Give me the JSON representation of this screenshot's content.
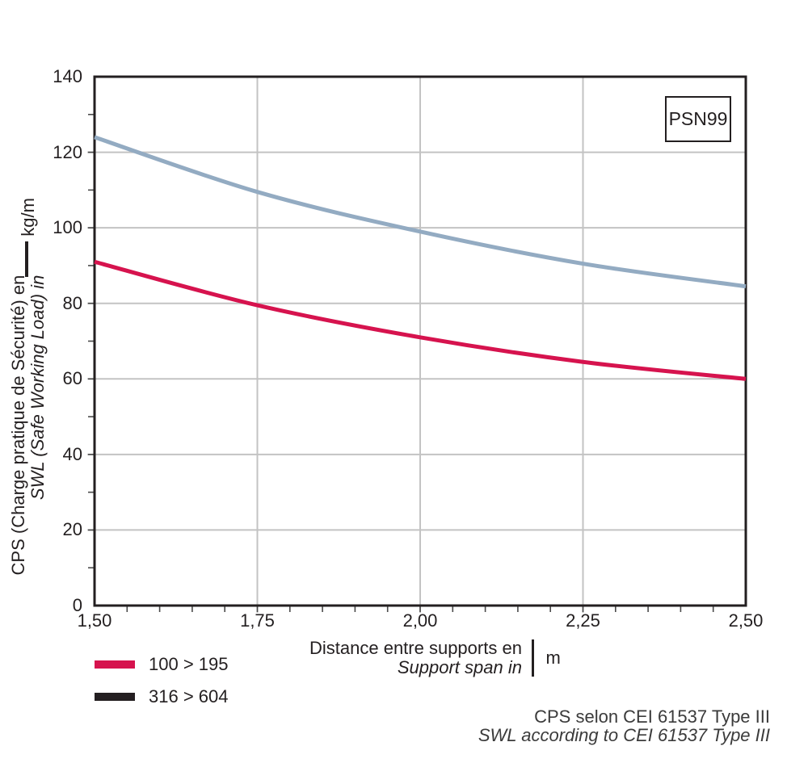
{
  "badge": {
    "label": "PSN99"
  },
  "footnote": {
    "line1": "CPS selon CEI 61537 Type III",
    "line2": "SWL according to CEI 61537 Type III"
  },
  "chart_data": {
    "type": "line",
    "x": [
      1.5,
      1.75,
      2.0,
      2.25,
      2.5
    ],
    "x_tick_labels": [
      "1,50",
      "1,75",
      "2,00",
      "2,25",
      "2,50"
    ],
    "y_ticks": [
      0,
      20,
      40,
      60,
      80,
      100,
      120,
      140
    ],
    "xlim": [
      1.5,
      2.5
    ],
    "ylim": [
      0,
      140
    ],
    "x_minor_step": 0.05,
    "y_minor_step": 10,
    "grid": "major",
    "series": [
      {
        "name": "upper-curve",
        "color": "#93abc2",
        "values": [
          124,
          109.5,
          99,
          90.5,
          84.5
        ]
      },
      {
        "name": "lower-curve",
        "color": "#d6134e",
        "values": [
          91,
          79.5,
          71,
          64.5,
          60
        ]
      }
    ],
    "legend": [
      {
        "label": "100 > 195",
        "color": "#d6134e"
      },
      {
        "label": "316 > 604",
        "color": "#241f21"
      }
    ],
    "legend_position": "below-left",
    "xlabel": {
      "line1": "Distance entre supports en",
      "line2": "Support span in",
      "unit": "m"
    },
    "ylabel": {
      "line1": "CPS (Charge pratique de Sécurité) en",
      "line2": "SWL (Safe Working Load) in",
      "unit": "kg/m"
    },
    "colors": {
      "grid": "#c3c3c3",
      "frame": "#231f20",
      "tick": "#4a4a4a"
    }
  }
}
